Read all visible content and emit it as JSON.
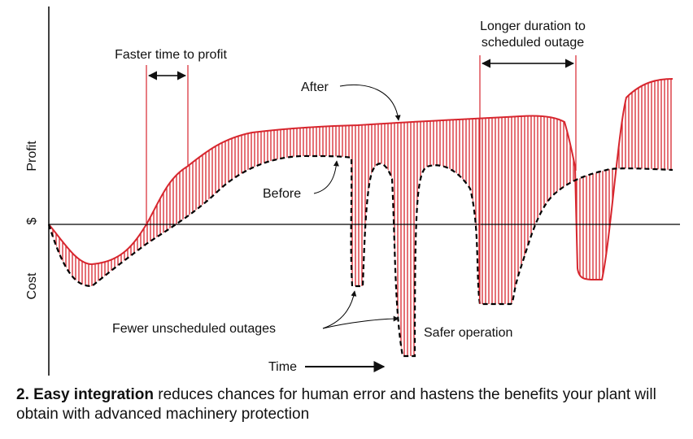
{
  "diagram": {
    "axis": {
      "profit_label": "Profit",
      "dollar_label": "$",
      "cost_label": "Cost",
      "time_label": "Time"
    },
    "annotations": {
      "faster_time_to_profit": "Faster time to profit",
      "after": "After",
      "before": "Before",
      "longer_duration_line1": "Longer duration to",
      "longer_duration_line2": "scheduled outage",
      "fewer_unscheduled_outages": "Fewer unscheduled outages",
      "safer_operation": "Safer operation"
    },
    "colors": {
      "after_curve": "#d7262e",
      "before_curve": "#000000",
      "hatch": "#d7262e"
    }
  },
  "caption": {
    "number": "2.",
    "emphasis": "Easy integration",
    "rest": "reduces chances for human error and hastens the benefits your plant will obtain with advanced machinery protection"
  }
}
